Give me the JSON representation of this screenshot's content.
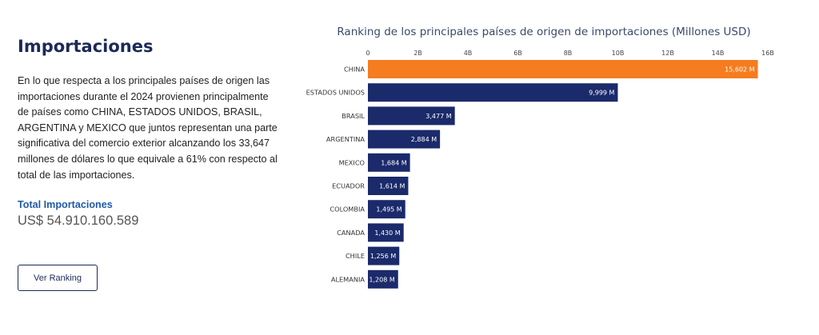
{
  "info": {
    "heading": "Importaciones",
    "paragraph": "En lo que respecta a los principales países de origen las importaciones durante el 2024 provienen principalmente de países como CHINA, ESTADOS UNIDOS, BRASIL, ARGENTINA y MEXICO que juntos representan una parte significativa del comercio exterior alcanzando los 33,647 millones de dólares lo que equivale a 61% con respecto al total de las importaciones.",
    "total_label": "Total Importaciones",
    "total_value": "US$ 54.910.160.589",
    "button_label": "Ver Ranking"
  },
  "colors": {
    "highlight_bar": "#f57c1f",
    "bar": "#1b2a6b",
    "heading": "#1b2a57",
    "total_label": "#1f5aa6"
  },
  "chart_data": {
    "type": "bar",
    "orientation": "horizontal",
    "title": "Ranking de los principales países de origen de importaciones (Millones USD)",
    "categories": [
      "CHINA",
      "ESTADOS UNIDOS",
      "BRASIL",
      "ARGENTINA",
      "MEXICO",
      "ECUADOR",
      "COLOMBIA",
      "CANADA",
      "CHILE",
      "ALEMANIA"
    ],
    "values": [
      15602,
      9999,
      3477,
      2884,
      1684,
      1614,
      1495,
      1430,
      1256,
      1208
    ],
    "data_labels": [
      "15,602 M",
      "9,999 M",
      "3,477 M",
      "2,884 M",
      "1,684 M",
      "1,614 M",
      "1,495 M",
      "1,430 M",
      "1,256 M",
      "1,208 M"
    ],
    "xlim": [
      0,
      16000
    ],
    "x_ticks": [
      {
        "value": 0,
        "label": "0"
      },
      {
        "value": 2000,
        "label": "2B"
      },
      {
        "value": 4000,
        "label": "4B"
      },
      {
        "value": 6000,
        "label": "6B"
      },
      {
        "value": 8000,
        "label": "8B"
      },
      {
        "value": 10000,
        "label": "10B"
      },
      {
        "value": 12000,
        "label": "12B"
      },
      {
        "value": 14000,
        "label": "14B"
      },
      {
        "value": 16000,
        "label": "16B"
      }
    ],
    "x_axis_position": "top",
    "grid": false,
    "highlighted_category": "CHINA"
  }
}
